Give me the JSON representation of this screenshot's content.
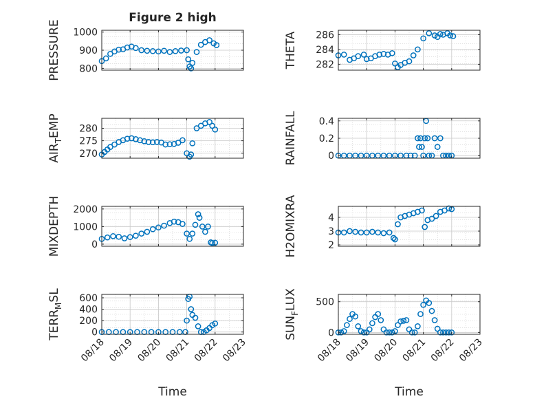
{
  "figure": {
    "title": "Figure 2 high",
    "xlabel": "Time"
  },
  "colors": {
    "marker": "#0072BD",
    "axis": "#262626",
    "grid": "#d0d0d0"
  },
  "chart_data": [
    {
      "type": "scatter",
      "marker": "circle-open",
      "ylabel": "PRESSURE",
      "ylim": [
        790,
        1010
      ],
      "yticks": [
        "800",
        "900",
        "1000"
      ],
      "ytick_values": [
        800,
        900,
        1000
      ],
      "xlim": [
        0,
        5
      ],
      "xtick_values": [
        0,
        1,
        2,
        3,
        4,
        5
      ],
      "xticks": [
        "08/18",
        "08/19",
        "08/20",
        "08/21",
        "08/22",
        "08/23"
      ],
      "show_xticklabels": false,
      "grid": true,
      "x": [
        0,
        0.15,
        0.3,
        0.45,
        0.6,
        0.75,
        0.9,
        1.05,
        1.2,
        1.4,
        1.6,
        1.8,
        2.0,
        2.2,
        2.4,
        2.6,
        2.8,
        3.0,
        3.05,
        3.1,
        3.15,
        3.2,
        3.35,
        3.5,
        3.65,
        3.8,
        3.95,
        4.05
      ],
      "y": [
        840,
        855,
        880,
        893,
        903,
        905,
        915,
        920,
        912,
        900,
        897,
        895,
        893,
        897,
        890,
        895,
        898,
        900,
        850,
        810,
        800,
        830,
        890,
        930,
        945,
        955,
        938,
        928
      ]
    },
    {
      "type": "scatter",
      "marker": "circle-open",
      "ylabel": "THETA",
      "ylim": [
        281.2,
        286.6
      ],
      "yticks": [
        "282",
        "284",
        "286"
      ],
      "ytick_values": [
        282,
        284,
        286
      ],
      "xlim": [
        0,
        5
      ],
      "xtick_values": [
        0,
        1,
        2,
        3,
        4,
        5
      ],
      "xticks": [
        "08/18",
        "08/19",
        "08/20",
        "08/21",
        "08/22",
        "08/23"
      ],
      "show_xticklabels": false,
      "grid": true,
      "x": [
        0,
        0.2,
        0.4,
        0.55,
        0.7,
        0.9,
        1.0,
        1.15,
        1.3,
        1.45,
        1.6,
        1.75,
        1.9,
        2.0,
        2.1,
        2.2,
        2.35,
        2.5,
        2.65,
        2.8,
        3.0,
        3.2,
        3.4,
        3.5,
        3.6,
        3.7,
        3.85,
        3.95,
        4.05
      ],
      "y": [
        283.2,
        283.3,
        282.6,
        282.8,
        283.1,
        283.3,
        282.7,
        282.8,
        283.1,
        283.3,
        283.4,
        283.3,
        283.5,
        282.1,
        281.6,
        281.9,
        282.2,
        282.4,
        283.2,
        284.0,
        285.5,
        286.2,
        285.9,
        285.7,
        286.1,
        286.0,
        286.2,
        285.9,
        285.8
      ]
    },
    {
      "type": "scatter",
      "marker": "circle-open",
      "ylabel": "AIR_TEMP",
      "ylabel_main": "AIR",
      "ylabel_sub": "T",
      "ylabel_rest": "EMP",
      "ylim": [
        268,
        284
      ],
      "yticks": [
        "270",
        "275",
        "280"
      ],
      "ytick_values": [
        270,
        275,
        280
      ],
      "xlim": [
        0,
        5
      ],
      "xtick_values": [
        0,
        1,
        2,
        3,
        4,
        5
      ],
      "xticks": [
        "08/18",
        "08/19",
        "08/20",
        "08/21",
        "08/22",
        "08/23"
      ],
      "show_xticklabels": false,
      "grid": true,
      "x": [
        0,
        0.1,
        0.2,
        0.3,
        0.45,
        0.6,
        0.75,
        0.9,
        1.05,
        1.2,
        1.35,
        1.5,
        1.65,
        1.8,
        1.95,
        2.1,
        2.25,
        2.4,
        2.55,
        2.7,
        2.85,
        3.0,
        3.1,
        3.15,
        3.2,
        3.35,
        3.5,
        3.65,
        3.8,
        3.9,
        4.0
      ],
      "y": [
        269.5,
        270.5,
        271.5,
        272.5,
        273.5,
        274.5,
        275.2,
        275.8,
        276.0,
        275.6,
        275.2,
        274.8,
        274.5,
        274.4,
        274.5,
        274.3,
        273.5,
        273.6,
        273.7,
        274.2,
        275.2,
        270.0,
        268.6,
        269.5,
        274.0,
        280.0,
        281.0,
        282.0,
        282.5,
        281.0,
        279.5
      ]
    },
    {
      "type": "scatter",
      "marker": "circle-open",
      "ylabel": "RAINFALL",
      "ylim": [
        -0.03,
        0.43
      ],
      "yticks": [
        "0",
        "0.2",
        "0.4"
      ],
      "ytick_values": [
        0,
        0.2,
        0.4
      ],
      "xlim": [
        0,
        5
      ],
      "xtick_values": [
        0,
        1,
        2,
        3,
        4,
        5
      ],
      "xticks": [
        "08/18",
        "08/19",
        "08/20",
        "08/21",
        "08/22",
        "08/23"
      ],
      "show_xticklabels": false,
      "grid": true,
      "x": [
        0,
        0.2,
        0.4,
        0.6,
        0.8,
        1.0,
        1.2,
        1.4,
        1.6,
        1.8,
        2.0,
        2.2,
        2.4,
        2.55,
        2.7,
        2.8,
        2.85,
        2.9,
        2.95,
        3.0,
        3.05,
        3.1,
        3.15,
        3.2,
        3.3,
        3.4,
        3.5,
        3.6,
        3.7,
        3.8,
        3.9,
        4.0
      ],
      "y": [
        0,
        0,
        0,
        0,
        0,
        0,
        0,
        0,
        0,
        0,
        0,
        0,
        0,
        0,
        0,
        0.2,
        0.1,
        0.2,
        0.1,
        0,
        0.2,
        0.4,
        0.2,
        0,
        0,
        0.2,
        0.1,
        0.2,
        0,
        0,
        0,
        0
      ]
    },
    {
      "type": "scatter",
      "marker": "circle-open",
      "ylabel": "MIXDEPTH",
      "ylim": [
        -120,
        2150
      ],
      "yticks": [
        "0",
        "1000",
        "2000"
      ],
      "ytick_values": [
        0,
        1000,
        2000
      ],
      "xlim": [
        0,
        5
      ],
      "xtick_values": [
        0,
        1,
        2,
        3,
        4,
        5
      ],
      "xticks": [
        "08/18",
        "08/19",
        "08/20",
        "08/21",
        "08/22",
        "08/23"
      ],
      "show_xticklabels": false,
      "grid": true,
      "x": [
        0,
        0.2,
        0.4,
        0.6,
        0.8,
        1.0,
        1.2,
        1.4,
        1.6,
        1.8,
        2.0,
        2.2,
        2.4,
        2.55,
        2.7,
        2.85,
        3.0,
        3.1,
        3.2,
        3.3,
        3.4,
        3.45,
        3.55,
        3.65,
        3.75,
        3.85,
        3.9,
        4.0
      ],
      "y": [
        300,
        380,
        450,
        420,
        330,
        400,
        480,
        600,
        700,
        850,
        950,
        1050,
        1200,
        1280,
        1250,
        1150,
        600,
        300,
        600,
        1100,
        1700,
        1500,
        1000,
        700,
        1000,
        100,
        60,
        80
      ]
    },
    {
      "type": "scatter",
      "marker": "circle-open",
      "ylabel": "H2OMIXRA",
      "ylim": [
        1.9,
        4.8
      ],
      "yticks": [
        "2",
        "3",
        "4"
      ],
      "ytick_values": [
        2,
        3,
        4
      ],
      "xlim": [
        0,
        5
      ],
      "xtick_values": [
        0,
        1,
        2,
        3,
        4,
        5
      ],
      "xticks": [
        "08/18",
        "08/19",
        "08/20",
        "08/21",
        "08/22",
        "08/23"
      ],
      "show_xticklabels": false,
      "grid": true,
      "x": [
        0,
        0.2,
        0.4,
        0.6,
        0.8,
        1.0,
        1.2,
        1.4,
        1.6,
        1.8,
        1.95,
        2.0,
        2.1,
        2.2,
        2.35,
        2.5,
        2.65,
        2.8,
        2.95,
        3.05,
        3.15,
        3.3,
        3.45,
        3.6,
        3.75,
        3.9,
        4.0
      ],
      "y": [
        2.9,
        2.9,
        3.0,
        2.95,
        2.9,
        2.9,
        2.95,
        2.9,
        2.85,
        2.9,
        2.5,
        2.4,
        3.5,
        4.0,
        4.1,
        4.2,
        4.3,
        4.4,
        4.5,
        3.3,
        3.8,
        3.9,
        4.1,
        4.4,
        4.5,
        4.65,
        4.6
      ]
    },
    {
      "type": "scatter",
      "marker": "circle-open",
      "ylabel": "TERR_MSL",
      "ylabel_main": "TERR",
      "ylabel_sub": "M",
      "ylabel_rest": "SL",
      "ylim": [
        -40,
        660
      ],
      "yticks": [
        "0",
        "200",
        "400",
        "600"
      ],
      "ytick_values": [
        0,
        200,
        400,
        600
      ],
      "xlim": [
        0,
        5
      ],
      "xtick_values": [
        0,
        1,
        2,
        3,
        4,
        5
      ],
      "xticks": [
        "08/18",
        "08/19",
        "08/20",
        "08/21",
        "08/22",
        "08/23"
      ],
      "show_xticklabels": true,
      "grid": true,
      "x": [
        0,
        0.25,
        0.5,
        0.75,
        1.0,
        1.25,
        1.5,
        1.75,
        2.0,
        2.25,
        2.5,
        2.75,
        2.95,
        3.0,
        3.05,
        3.1,
        3.15,
        3.2,
        3.3,
        3.4,
        3.5,
        3.6,
        3.7,
        3.8,
        3.9,
        4.0
      ],
      "y": [
        0,
        0,
        0,
        0,
        0,
        0,
        0,
        0,
        0,
        0,
        0,
        0,
        0,
        200,
        580,
        620,
        400,
        300,
        250,
        100,
        0,
        0,
        30,
        70,
        120,
        150
      ]
    },
    {
      "type": "scatter",
      "marker": "circle-open",
      "ylabel": "SUN_FLUX",
      "ylabel_main": "SUN",
      "ylabel_sub": "F",
      "ylabel_rest": "LUX",
      "ylim": [
        -30,
        620
      ],
      "yticks": [
        "0",
        "500"
      ],
      "ytick_values": [
        0,
        500
      ],
      "xlim": [
        0,
        5
      ],
      "xtick_values": [
        0,
        1,
        2,
        3,
        4,
        5
      ],
      "xticks": [
        "08/18",
        "08/19",
        "08/20",
        "08/21",
        "08/22",
        "08/23"
      ],
      "show_xticklabels": true,
      "grid": true,
      "x": [
        0,
        0.1,
        0.2,
        0.3,
        0.4,
        0.5,
        0.6,
        0.7,
        0.8,
        0.9,
        1.0,
        1.1,
        1.2,
        1.3,
        1.4,
        1.5,
        1.6,
        1.7,
        1.8,
        1.9,
        2.0,
        2.1,
        2.2,
        2.3,
        2.4,
        2.5,
        2.6,
        2.7,
        2.8,
        2.9,
        3.0,
        3.1,
        3.2,
        3.3,
        3.4,
        3.5,
        3.6,
        3.7,
        3.8,
        3.9,
        4.0
      ],
      "y": [
        0,
        0,
        20,
        120,
        220,
        300,
        260,
        100,
        20,
        0,
        0,
        50,
        150,
        250,
        300,
        200,
        50,
        0,
        0,
        0,
        20,
        120,
        180,
        190,
        200,
        50,
        0,
        0,
        100,
        300,
        450,
        520,
        480,
        350,
        200,
        60,
        0,
        0,
        0,
        0,
        0
      ]
    }
  ]
}
